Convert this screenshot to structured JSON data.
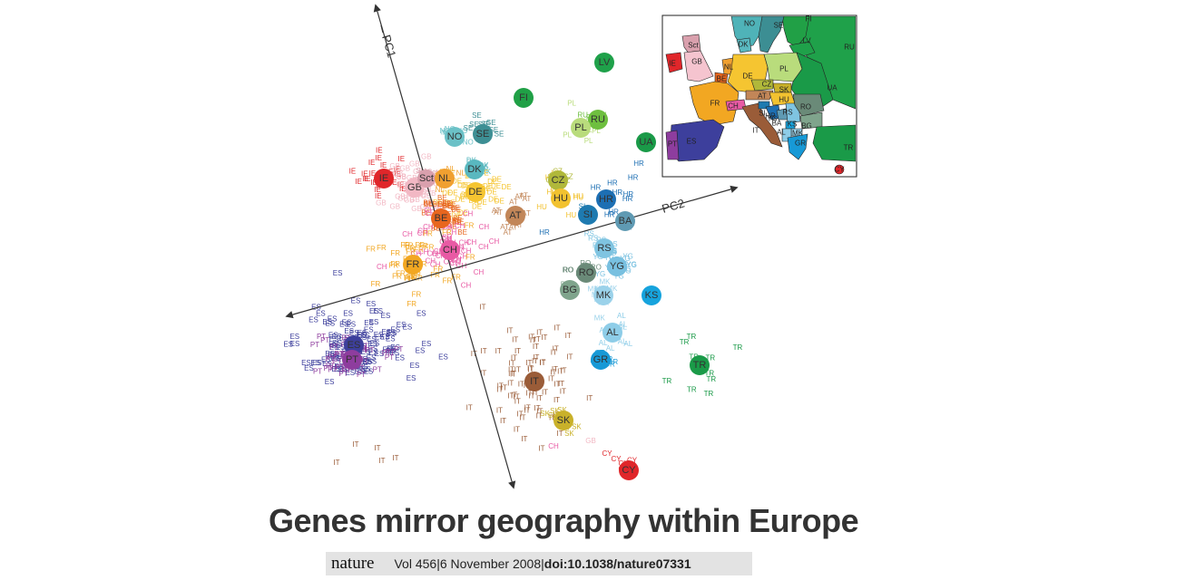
{
  "figure": {
    "axes": {
      "pc1_label": "PC1",
      "pc2_label": "PC2"
    },
    "populations": [
      {
        "code": "IE",
        "color": "#e0262a"
      },
      {
        "code": "GB",
        "color": "#f2b8c4"
      },
      {
        "code": "Sct",
        "color": "#d9a0ad"
      },
      {
        "code": "NL",
        "color": "#f0a030"
      },
      {
        "code": "DK",
        "color": "#59b8bf"
      },
      {
        "code": "DE",
        "color": "#f5c531"
      },
      {
        "code": "BE",
        "color": "#e8661e"
      },
      {
        "code": "CH",
        "color": "#e85aa4"
      },
      {
        "code": "FR",
        "color": "#f2a722"
      },
      {
        "code": "NO",
        "color": "#6bc1c7"
      },
      {
        "code": "SE",
        "color": "#3d8f94"
      },
      {
        "code": "FI",
        "color": "#20a046"
      },
      {
        "code": "LV",
        "color": "#1fa14a"
      },
      {
        "code": "RU",
        "color": "#6ebf3f"
      },
      {
        "code": "PL",
        "color": "#b9dc7c"
      },
      {
        "code": "UA",
        "color": "#1a9a48"
      },
      {
        "code": "CZ",
        "color": "#b0b83a"
      },
      {
        "code": "HU",
        "color": "#f2c230"
      },
      {
        "code": "AT",
        "color": "#c28658"
      },
      {
        "code": "HR",
        "color": "#1d6fb3"
      },
      {
        "code": "SI",
        "color": "#1e7ab0"
      },
      {
        "code": "BA",
        "color": "#5f9ab3"
      },
      {
        "code": "RS",
        "color": "#7fc4e1"
      },
      {
        "code": "YG",
        "color": "#78c0e0"
      },
      {
        "code": "RO",
        "color": "#6a8a78"
      },
      {
        "code": "BG",
        "color": "#7fa48c"
      },
      {
        "code": "MK",
        "color": "#9bd2ea"
      },
      {
        "code": "KS",
        "color": "#16a3dd"
      },
      {
        "code": "AL",
        "color": "#8ecde8"
      },
      {
        "code": "GR",
        "color": "#1799d6"
      },
      {
        "code": "TR",
        "color": "#1a9a48"
      },
      {
        "code": "IT",
        "color": "#9a5c38"
      },
      {
        "code": "SK",
        "color": "#c9b12a"
      },
      {
        "code": "CY",
        "color": "#e0262a"
      },
      {
        "code": "ES",
        "color": "#3d3f9c"
      },
      {
        "code": "PT",
        "color": "#8e3d9e"
      }
    ],
    "map": {
      "countries": [
        {
          "code": "NO",
          "color": "#4fb3b8"
        },
        {
          "code": "SE",
          "color": "#3c8e93"
        },
        {
          "code": "FI",
          "color": "#21a046"
        },
        {
          "code": "RU",
          "color": "#1fa14a"
        },
        {
          "code": "LV",
          "color": "#1fa14a"
        },
        {
          "code": "DK",
          "color": "#59b8bf"
        },
        {
          "code": "Sct",
          "color": "#d9a0ad"
        },
        {
          "code": "GB",
          "color": "#f5c4cf"
        },
        {
          "code": "IE",
          "color": "#e0262a"
        },
        {
          "code": "NL",
          "color": "#f0a030"
        },
        {
          "code": "BE",
          "color": "#e8661e"
        },
        {
          "code": "DE",
          "color": "#f5c531"
        },
        {
          "code": "PL",
          "color": "#b9dc7c"
        },
        {
          "code": "UA",
          "color": "#1a9a48"
        },
        {
          "code": "CZ",
          "color": "#b0b83a"
        },
        {
          "code": "SK",
          "color": "#c9b12a"
        },
        {
          "code": "AT",
          "color": "#c28658"
        },
        {
          "code": "HU",
          "color": "#f2c230"
        },
        {
          "code": "FR",
          "color": "#f2a722"
        },
        {
          "code": "CH",
          "color": "#e85aa4"
        },
        {
          "code": "IT",
          "color": "#9a5c38"
        },
        {
          "code": "SI",
          "color": "#1e7ab0"
        },
        {
          "code": "HR",
          "color": "#1d6fb3"
        },
        {
          "code": "BA",
          "color": "#5f9ab3"
        },
        {
          "code": "YG",
          "color": "#78c0e0"
        },
        {
          "code": "RS",
          "color": "#7fc4e1"
        },
        {
          "code": "RO",
          "color": "#6a8a78"
        },
        {
          "code": "BG",
          "color": "#7fa48c"
        },
        {
          "code": "KS",
          "color": "#16a3dd"
        },
        {
          "code": "MK",
          "color": "#9bd2ea"
        },
        {
          "code": "AL",
          "color": "#8ecde8"
        },
        {
          "code": "GR",
          "color": "#1799d6"
        },
        {
          "code": "TR",
          "color": "#1a9a48"
        },
        {
          "code": "CY",
          "color": "#e0262a"
        },
        {
          "code": "ES",
          "color": "#3d3f9c"
        },
        {
          "code": "PT",
          "color": "#8e3d9e"
        }
      ]
    }
  },
  "headline": "Genes mirror geography within Europe",
  "citation": {
    "journal": "nature",
    "volume_date": "Vol 456|6 November 2008|",
    "doi": "doi:10.1038/nature07331"
  }
}
